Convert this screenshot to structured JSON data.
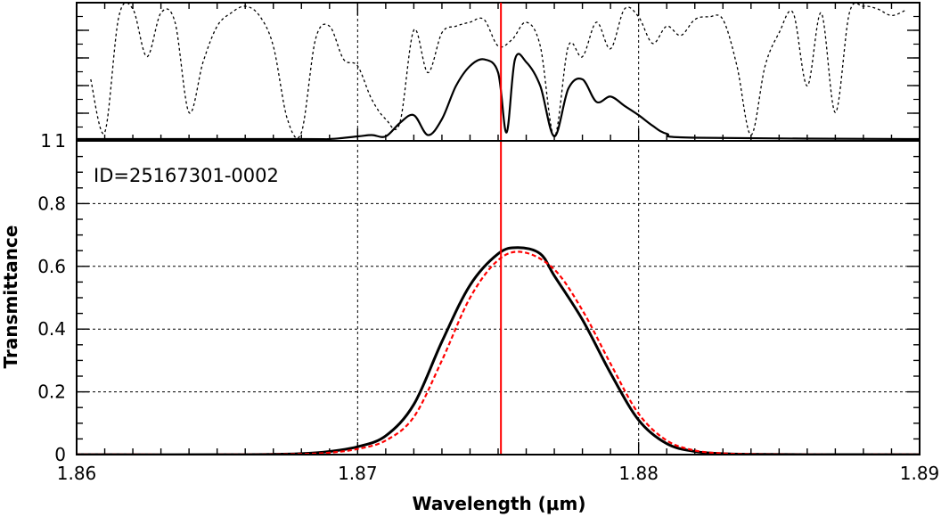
{
  "chart_data": [
    {
      "panel": "atmosphere",
      "type": "line",
      "xlim": [
        1.86,
        1.89
      ],
      "ylim": [
        0,
        1
      ],
      "y_tick_labels": [
        "1"
      ],
      "series": [
        {
          "style": "dotted",
          "x": [
            1.8605,
            1.861,
            1.8615,
            1.862,
            1.8625,
            1.863,
            1.8635,
            1.864,
            1.8645,
            1.865,
            1.8655,
            1.866,
            1.8665,
            1.867,
            1.8675,
            1.868,
            1.8685,
            1.869,
            1.8695,
            1.87,
            1.8705,
            1.871,
            1.8715,
            1.872,
            1.8725,
            1.873,
            1.8735,
            1.874,
            1.8745,
            1.875,
            1.8755,
            1.876,
            1.8765,
            1.877,
            1.8775,
            1.878,
            1.8785,
            1.879,
            1.8795,
            1.88,
            1.8805,
            1.881,
            1.8815,
            1.882,
            1.8825,
            1.883,
            1.8835,
            1.884,
            1.8845,
            1.885,
            1.8855,
            1.886,
            1.8865,
            1.887,
            1.8875,
            1.888,
            1.8885,
            1.889,
            1.8895
          ],
          "values": [
            0.45,
            0.05,
            0.92,
            0.98,
            0.62,
            0.95,
            0.88,
            0.2,
            0.58,
            0.85,
            0.95,
            1.0,
            0.93,
            0.7,
            0.15,
            0.05,
            0.75,
            0.85,
            0.6,
            0.55,
            0.3,
            0.15,
            0.12,
            0.82,
            0.5,
            0.8,
            0.85,
            0.88,
            0.9,
            0.7,
            0.75,
            0.88,
            0.7,
            0.02,
            0.7,
            0.62,
            0.88,
            0.68,
            0.98,
            0.92,
            0.72,
            0.85,
            0.78,
            0.9,
            0.92,
            0.9,
            0.55,
            0.03,
            0.55,
            0.8,
            0.95,
            0.4,
            0.95,
            0.2,
            0.95,
            1.0,
            0.98,
            0.93,
            0.97
          ]
        },
        {
          "style": "solid",
          "x": [
            1.86,
            1.868,
            1.869,
            1.87,
            1.8705,
            1.871,
            1.8715,
            1.872,
            1.8725,
            1.873,
            1.8735,
            1.874,
            1.8745,
            1.875,
            1.8753,
            1.8756,
            1.876,
            1.8765,
            1.877,
            1.8775,
            1.878,
            1.8785,
            1.879,
            1.8795,
            1.88,
            1.8805,
            1.881,
            1.882,
            1.89
          ],
          "values": [
            0.0,
            0.0,
            0.0,
            0.02,
            0.03,
            0.02,
            0.12,
            0.18,
            0.03,
            0.15,
            0.4,
            0.55,
            0.6,
            0.5,
            0.05,
            0.6,
            0.58,
            0.4,
            0.02,
            0.38,
            0.45,
            0.28,
            0.32,
            0.25,
            0.18,
            0.1,
            0.04,
            0.01,
            0.0
          ]
        }
      ]
    },
    {
      "panel": "filter",
      "type": "line",
      "xlabel": "Wavelength (μm)",
      "ylabel": "Transmittance",
      "xlim": [
        1.86,
        1.89
      ],
      "ylim": [
        0,
        1
      ],
      "x_tick_labels": [
        "1.86",
        "1.87",
        "1.88",
        "1.89"
      ],
      "y_tick_labels": [
        "0",
        "0.2",
        "0.4",
        "0.6",
        "0.8",
        "1"
      ],
      "grid": true,
      "annotation": "ID=25167301-0002",
      "vertical_line_x": 1.8751,
      "series": [
        {
          "style": "solid black",
          "x": [
            1.86,
            1.866,
            1.868,
            1.869,
            1.87,
            1.871,
            1.872,
            1.873,
            1.874,
            1.875,
            1.8757,
            1.8765,
            1.877,
            1.878,
            1.879,
            1.88,
            1.881,
            1.882,
            1.883,
            1.884,
            1.886,
            1.89
          ],
          "values": [
            0.0,
            0.0,
            0.003,
            0.01,
            0.025,
            0.06,
            0.16,
            0.36,
            0.54,
            0.64,
            0.66,
            0.64,
            0.57,
            0.43,
            0.26,
            0.11,
            0.035,
            0.01,
            0.003,
            0.001,
            0.0,
            0.0
          ]
        },
        {
          "style": "dashed red",
          "x": [
            1.86,
            1.866,
            1.868,
            1.869,
            1.87,
            1.871,
            1.872,
            1.873,
            1.874,
            1.875,
            1.8759,
            1.877,
            1.878,
            1.879,
            1.88,
            1.881,
            1.882,
            1.883,
            1.884,
            1.886,
            1.89
          ],
          "values": [
            0.0,
            0.0,
            0.002,
            0.006,
            0.018,
            0.045,
            0.12,
            0.3,
            0.5,
            0.62,
            0.645,
            0.59,
            0.46,
            0.29,
            0.13,
            0.045,
            0.013,
            0.004,
            0.001,
            0.0,
            0.0
          ]
        }
      ]
    }
  ]
}
